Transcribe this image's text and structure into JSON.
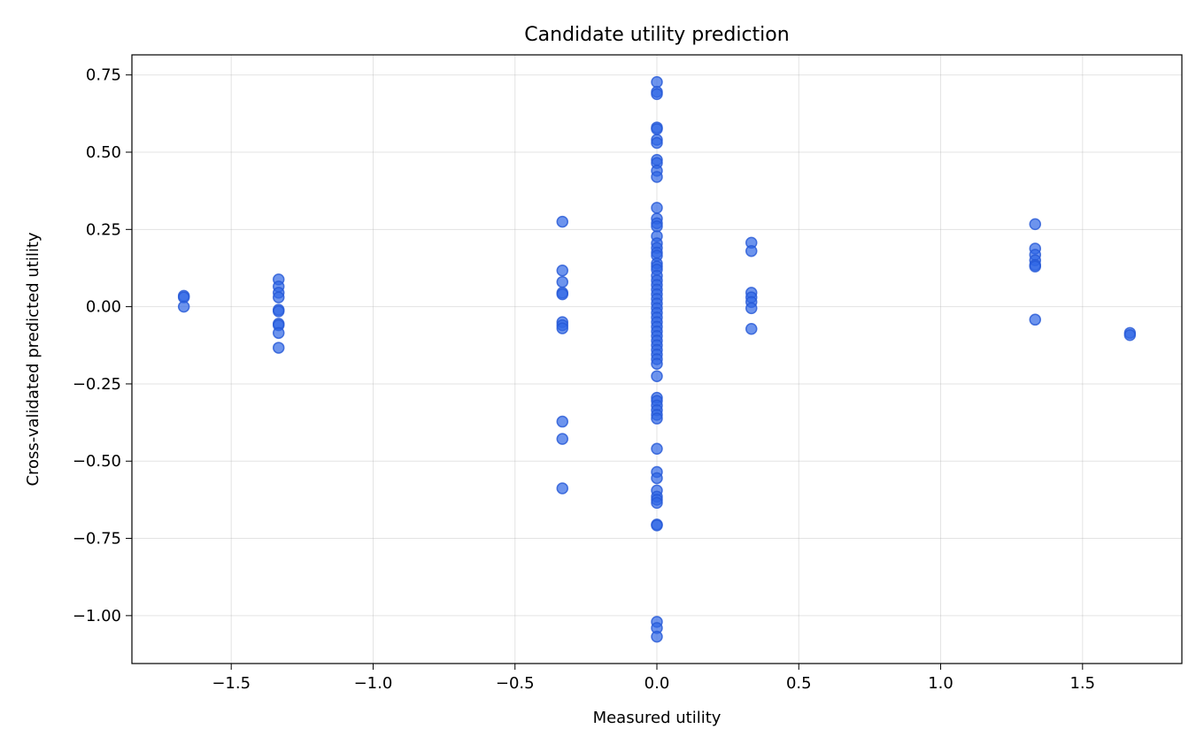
{
  "chart_data": {
    "type": "scatter",
    "title": "Candidate utility prediction",
    "xlabel": "Measured utility",
    "ylabel": "Cross-validated predicted utility",
    "xlim": [
      -1.85,
      1.85
    ],
    "ylim": [
      -1.155,
      0.815
    ],
    "xticks": [
      -1.5,
      -1.0,
      -0.5,
      0.0,
      0.5,
      1.0,
      1.5
    ],
    "xtick_labels": [
      "−1.5",
      "−1.0",
      "−0.5",
      "0.0",
      "0.5",
      "1.0",
      "1.5"
    ],
    "yticks": [
      0.75,
      0.5,
      0.25,
      0.0,
      -0.25,
      -0.5,
      -0.75,
      -1.0
    ],
    "ytick_labels": [
      "0.75",
      "0.50",
      "0.25",
      "0.00",
      "−0.25",
      "−0.50",
      "−0.75",
      "−1.00"
    ],
    "grid": true,
    "marker_color": "#2f66e6",
    "marker_edge_color": "#2457d6",
    "points": [
      [
        -1.667,
        0.035
      ],
      [
        -1.667,
        0.03
      ],
      [
        -1.667,
        0.0
      ],
      [
        -1.333,
        0.088
      ],
      [
        -1.333,
        0.065
      ],
      [
        -1.333,
        0.045
      ],
      [
        -1.333,
        0.03
      ],
      [
        -1.333,
        -0.01
      ],
      [
        -1.333,
        -0.015
      ],
      [
        -1.333,
        -0.055
      ],
      [
        -1.333,
        -0.06
      ],
      [
        -1.333,
        -0.085
      ],
      [
        -1.333,
        -0.133
      ],
      [
        -0.333,
        0.275
      ],
      [
        -0.333,
        0.117
      ],
      [
        -0.333,
        0.08
      ],
      [
        -0.333,
        0.045
      ],
      [
        -0.333,
        0.04
      ],
      [
        -0.333,
        -0.05
      ],
      [
        -0.333,
        -0.06
      ],
      [
        -0.333,
        -0.07
      ],
      [
        -0.333,
        -0.372
      ],
      [
        -0.333,
        -0.428
      ],
      [
        -0.333,
        -0.588
      ],
      [
        0.0,
        0.727
      ],
      [
        0.0,
        0.695
      ],
      [
        0.0,
        0.688
      ],
      [
        0.0,
        0.58
      ],
      [
        0.0,
        0.575
      ],
      [
        0.0,
        0.54
      ],
      [
        0.0,
        0.53
      ],
      [
        0.0,
        0.475
      ],
      [
        0.0,
        0.465
      ],
      [
        0.0,
        0.44
      ],
      [
        0.0,
        0.42
      ],
      [
        0.0,
        0.32
      ],
      [
        0.0,
        0.285
      ],
      [
        0.0,
        0.27
      ],
      [
        0.0,
        0.26
      ],
      [
        0.0,
        0.228
      ],
      [
        0.0,
        0.205
      ],
      [
        0.0,
        0.19
      ],
      [
        0.0,
        0.175
      ],
      [
        0.0,
        0.165
      ],
      [
        0.0,
        0.14
      ],
      [
        0.0,
        0.13
      ],
      [
        0.0,
        0.12
      ],
      [
        0.0,
        0.1
      ],
      [
        0.0,
        0.085
      ],
      [
        0.0,
        0.07
      ],
      [
        0.0,
        0.055
      ],
      [
        0.0,
        0.04
      ],
      [
        0.0,
        0.025
      ],
      [
        0.0,
        0.01
      ],
      [
        0.0,
        -0.005
      ],
      [
        0.0,
        -0.02
      ],
      [
        0.0,
        -0.035
      ],
      [
        0.0,
        -0.05
      ],
      [
        0.0,
        -0.065
      ],
      [
        0.0,
        -0.08
      ],
      [
        0.0,
        -0.095
      ],
      [
        0.0,
        -0.11
      ],
      [
        0.0,
        -0.125
      ],
      [
        0.0,
        -0.14
      ],
      [
        0.0,
        -0.155
      ],
      [
        0.0,
        -0.17
      ],
      [
        0.0,
        -0.185
      ],
      [
        0.0,
        -0.225
      ],
      [
        0.0,
        -0.295
      ],
      [
        0.0,
        -0.305
      ],
      [
        0.0,
        -0.32
      ],
      [
        0.0,
        -0.335
      ],
      [
        0.0,
        -0.35
      ],
      [
        0.0,
        -0.362
      ],
      [
        0.0,
        -0.46
      ],
      [
        0.0,
        -0.535
      ],
      [
        0.0,
        -0.555
      ],
      [
        0.0,
        -0.595
      ],
      [
        0.0,
        -0.615
      ],
      [
        0.0,
        -0.625
      ],
      [
        0.0,
        -0.635
      ],
      [
        0.0,
        -0.705
      ],
      [
        0.0,
        -0.708
      ],
      [
        0.0,
        -1.02
      ],
      [
        0.0,
        -1.04
      ],
      [
        0.0,
        -1.068
      ],
      [
        0.333,
        0.207
      ],
      [
        0.333,
        0.18
      ],
      [
        0.333,
        0.045
      ],
      [
        0.333,
        0.03
      ],
      [
        0.333,
        0.015
      ],
      [
        0.333,
        -0.005
      ],
      [
        0.333,
        -0.072
      ],
      [
        1.333,
        0.267
      ],
      [
        1.333,
        0.188
      ],
      [
        1.333,
        0.168
      ],
      [
        1.333,
        0.15
      ],
      [
        1.333,
        0.135
      ],
      [
        1.333,
        0.13
      ],
      [
        1.333,
        -0.042
      ],
      [
        1.667,
        -0.085
      ],
      [
        1.667,
        -0.092
      ]
    ]
  }
}
